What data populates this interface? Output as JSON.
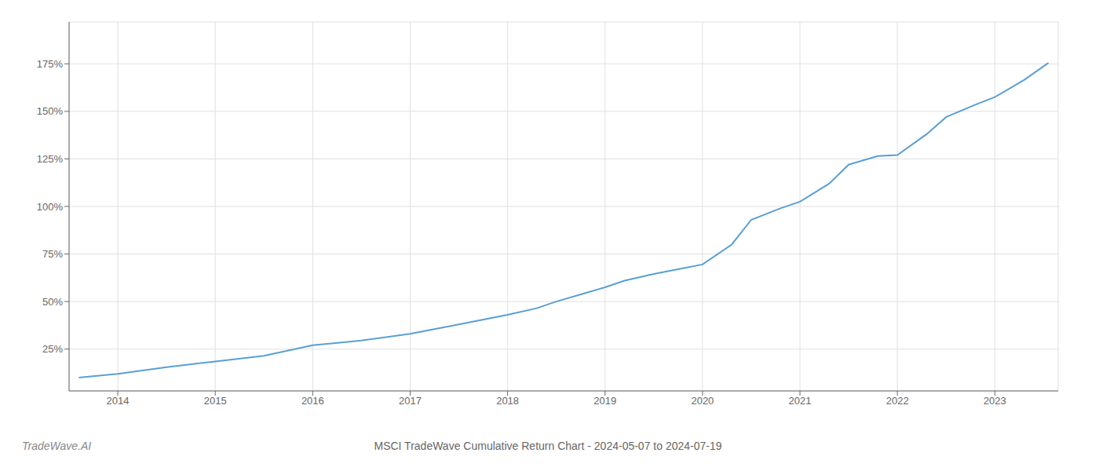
{
  "chart_data": {
    "type": "line",
    "title": "MSCI TradeWave Cumulative Return Chart - 2024-05-07 to 2024-07-19",
    "annotations": [
      "TradeWave.AI"
    ],
    "x": [
      2013.6,
      2014.0,
      2014.5,
      2015.0,
      2015.5,
      2016.0,
      2016.3,
      2016.5,
      2017.0,
      2017.5,
      2018.0,
      2018.3,
      2018.5,
      2018.8,
      2019.0,
      2019.2,
      2019.5,
      2019.8,
      2020.0,
      2020.3,
      2020.5,
      2020.8,
      2021.0,
      2021.3,
      2021.5,
      2021.8,
      2022.0,
      2022.3,
      2022.5,
      2022.8,
      2023.0,
      2023.3,
      2023.55
    ],
    "values": [
      0.1,
      0.12,
      0.155,
      0.185,
      0.215,
      0.27,
      0.285,
      0.295,
      0.33,
      0.38,
      0.43,
      0.465,
      0.5,
      0.545,
      0.575,
      0.61,
      0.645,
      0.675,
      0.695,
      0.8,
      0.93,
      0.99,
      1.025,
      1.12,
      1.22,
      1.265,
      1.27,
      1.38,
      1.47,
      1.535,
      1.575,
      1.665,
      1.755
    ],
    "color": "#5a9fd4",
    "xlim": [
      2013.5,
      2023.65
    ],
    "ylim": [
      0.03,
      1.97
    ],
    "xticks": [
      2014,
      2015,
      2016,
      2017,
      2018,
      2019,
      2020,
      2021,
      2022,
      2023
    ],
    "yticks": [
      {
        "value": 0.25,
        "label": "25%"
      },
      {
        "value": 0.5,
        "label": "50%"
      },
      {
        "value": 0.75,
        "label": "75%"
      },
      {
        "value": 1.0,
        "label": "100%"
      },
      {
        "value": 1.25,
        "label": "125%"
      },
      {
        "value": 1.5,
        "label": "150%"
      },
      {
        "value": 1.75,
        "label": "175%"
      }
    ],
    "grid": true
  }
}
